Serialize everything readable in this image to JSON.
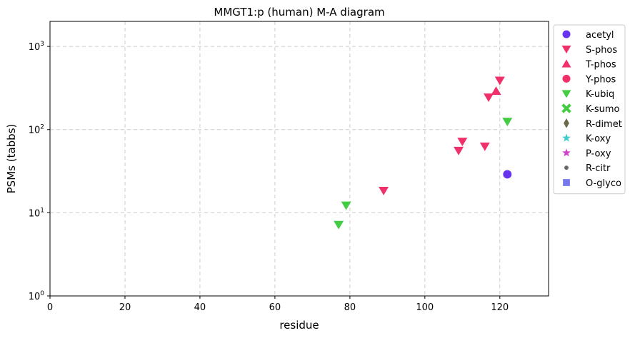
{
  "chart_data": {
    "type": "scatter",
    "title": "MMGT1:p (human) M-A diagram",
    "xlabel": "residue",
    "ylabel": "PSMs (tabbs)",
    "xlim": [
      0,
      133
    ],
    "ylim": [
      1,
      2000
    ],
    "yscale": "log",
    "grid": true,
    "legend_position": "outside-right",
    "x_ticks": [
      "0",
      "20",
      "40",
      "60",
      "80",
      "100",
      "120"
    ],
    "y_ticks": [
      {
        "base": "10",
        "exp": "0",
        "value": 1
      },
      {
        "base": "10",
        "exp": "1",
        "value": 10
      },
      {
        "base": "10",
        "exp": "2",
        "value": 100
      },
      {
        "base": "10",
        "exp": "3",
        "value": 1000
      }
    ],
    "series": [
      {
        "name": "acetyl",
        "marker": "circle",
        "color": "#6633ee",
        "points": [
          {
            "x": 122,
            "y": 29
          }
        ]
      },
      {
        "name": "S-phos",
        "marker": "triangle-down",
        "color": "#f0306a",
        "points": [
          {
            "x": 89,
            "y": 18.5
          },
          {
            "x": 109,
            "y": 56
          },
          {
            "x": 110,
            "y": 72
          },
          {
            "x": 116,
            "y": 63
          },
          {
            "x": 117,
            "y": 245
          },
          {
            "x": 120,
            "y": 390
          }
        ]
      },
      {
        "name": "T-phos",
        "marker": "triangle-up",
        "color": "#f0306a",
        "points": [
          {
            "x": 119,
            "y": 290
          }
        ]
      },
      {
        "name": "Y-phos",
        "marker": "circle",
        "color": "#f0306a",
        "points": []
      },
      {
        "name": "K-ubiq",
        "marker": "triangle-down",
        "color": "#44cc44",
        "points": [
          {
            "x": 77,
            "y": 7.2
          },
          {
            "x": 79,
            "y": 12.3
          },
          {
            "x": 122,
            "y": 125
          }
        ]
      },
      {
        "name": "K-sumo",
        "marker": "x",
        "color": "#44cc44",
        "points": []
      },
      {
        "name": "R-dimet",
        "marker": "diamond",
        "color": "#6b6b47",
        "points": []
      },
      {
        "name": "K-oxy",
        "marker": "star",
        "color": "#44cccc",
        "points": []
      },
      {
        "name": "P-oxy",
        "marker": "star",
        "color": "#cc44cc",
        "points": []
      },
      {
        "name": "R-citr",
        "marker": "small-circle",
        "color": "#666666",
        "points": []
      },
      {
        "name": "O-glyco",
        "marker": "square",
        "color": "#7777ee",
        "points": []
      }
    ]
  }
}
